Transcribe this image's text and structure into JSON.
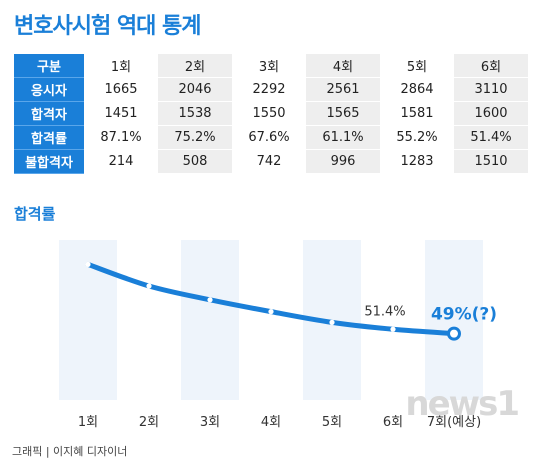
{
  "title": "변호사시험 역대 통계",
  "table": {
    "header_label": "구분",
    "columns": [
      "1회",
      "2회",
      "3회",
      "4회",
      "5회",
      "6회"
    ],
    "rows": [
      {
        "label": "응시자",
        "values": [
          "1665",
          "2046",
          "2292",
          "2561",
          "2864",
          "3110"
        ]
      },
      {
        "label": "합격자",
        "values": [
          "1451",
          "1538",
          "1550",
          "1565",
          "1581",
          "1600"
        ]
      },
      {
        "label": "합격률",
        "values": [
          "87.1%",
          "75.2%",
          "67.6%",
          "61.1%",
          "55.2%",
          "51.4%"
        ]
      },
      {
        "label": "불합격자",
        "values": [
          "214",
          "508",
          "742",
          "996",
          "1283",
          "1510"
        ]
      }
    ]
  },
  "chart_data": {
    "type": "line",
    "title": "합격률",
    "categories": [
      "1회",
      "2회",
      "3회",
      "4회",
      "5회",
      "6회",
      "7회(예상)"
    ],
    "series": [
      {
        "values": [
          87.1,
          75.2,
          67.6,
          61.1,
          55.2,
          51.4,
          49
        ]
      }
    ],
    "annotations": [
      {
        "category": "6회",
        "text": "51.4%"
      },
      {
        "category": "7회(예상)",
        "text": "49%(?)"
      }
    ],
    "ylim": [
      40,
      95
    ],
    "grid": false,
    "colors": {
      "line": "#1a7fd8",
      "column_shade": "#eef4fb",
      "marker": "#ffffff"
    }
  },
  "credit": "그래픽 | 이지혜 디자이너",
  "watermark": "news1"
}
